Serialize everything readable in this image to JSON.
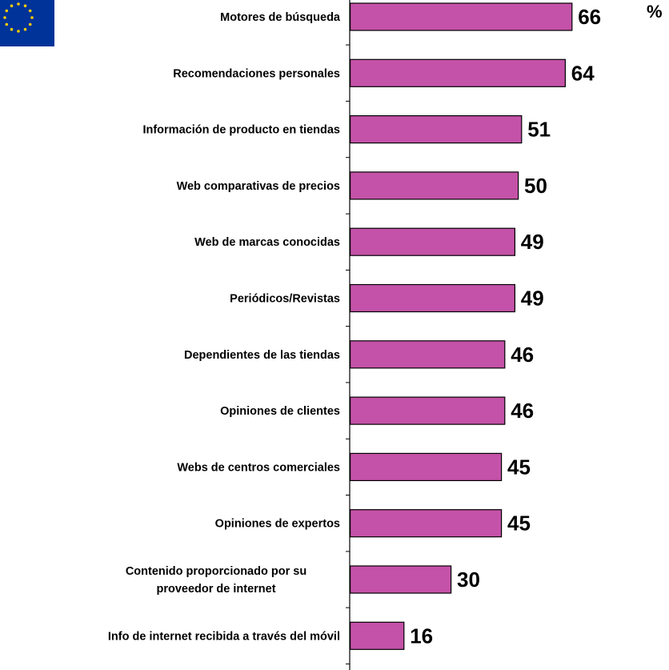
{
  "chart_data": {
    "type": "bar",
    "orientation": "horizontal",
    "unit": "%",
    "categories": [
      [
        "Motores de búsqueda"
      ],
      [
        "Recomendaciones personales"
      ],
      [
        "Información de producto en tiendas"
      ],
      [
        "Web comparativas de precios"
      ],
      [
        "Web de marcas conocidas"
      ],
      [
        "Periódicos/Revistas"
      ],
      [
        "Dependientes de las tiendas"
      ],
      [
        "Opiniones de clientes"
      ],
      [
        "Webs de centros comerciales"
      ],
      [
        "Opiniones de expertos"
      ],
      [
        "Contenido proporcionado por su",
        "proveedor de internet"
      ],
      [
        "Info de internet recibida a través del móvil"
      ]
    ],
    "values": [
      66,
      64,
      51,
      50,
      49,
      49,
      46,
      46,
      45,
      45,
      30,
      16
    ],
    "xlim": [
      0,
      100
    ],
    "grid": false,
    "legend": "none",
    "colors": {
      "bar_fill": "#c452a8",
      "bar_stroke": "#000000",
      "axis": "#000000",
      "flag_blue": "#003399",
      "flag_star": "#ffcc00"
    }
  }
}
